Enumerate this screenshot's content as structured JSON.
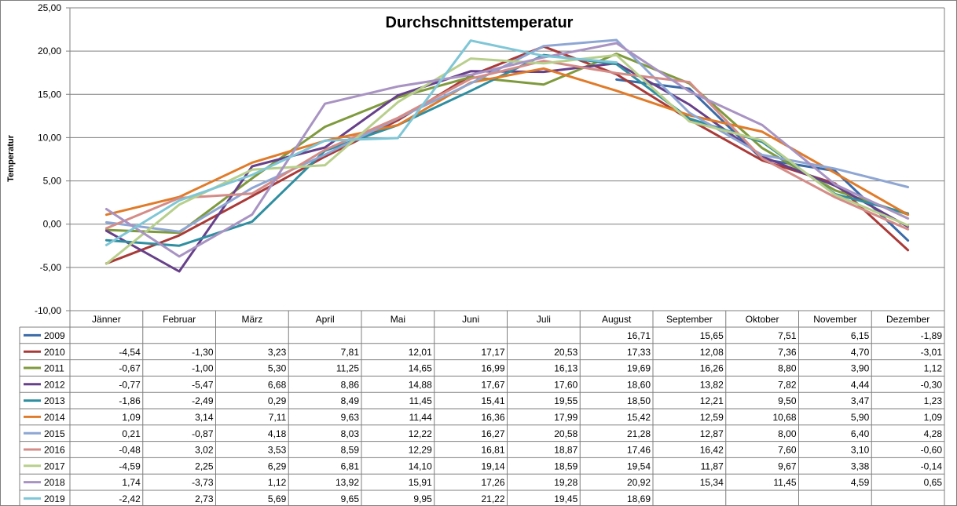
{
  "chart_data": {
    "type": "line",
    "title": "Durchschnittstemperatur",
    "ylabel": "Temperatur",
    "xlabel": "",
    "ylim": [
      -10,
      25
    ],
    "y_ticks": [
      "-10,00",
      "-5,00",
      "0,00",
      "5,00",
      "10,00",
      "15,00",
      "20,00",
      "25,00"
    ],
    "y_tick_values": [
      -10,
      -5,
      0,
      5,
      10,
      15,
      20,
      25
    ],
    "categories": [
      "Jänner",
      "Februar",
      "März",
      "April",
      "Mai",
      "Juni",
      "Juli",
      "August",
      "September",
      "Oktober",
      "November",
      "Dezember"
    ],
    "grid": true,
    "legend": "data-table-left",
    "series": [
      {
        "name": "2009",
        "color": "#3a6aa8",
        "values": [
          null,
          null,
          null,
          null,
          null,
          null,
          null,
          16.71,
          15.65,
          7.51,
          6.15,
          -1.89
        ],
        "labels": [
          "",
          "",
          "",
          "",
          "",
          "",
          "",
          "16,71",
          "15,65",
          "7,51",
          "6,15",
          "-1,89"
        ]
      },
      {
        "name": "2010",
        "color": "#a93a38",
        "values": [
          -4.54,
          -1.3,
          3.23,
          7.81,
          12.01,
          17.17,
          20.53,
          17.33,
          12.08,
          7.36,
          4.7,
          -3.01
        ],
        "labels": [
          "-4,54",
          "-1,30",
          "3,23",
          "7,81",
          "12,01",
          "17,17",
          "20,53",
          "17,33",
          "12,08",
          "7,36",
          "4,70",
          "-3,01"
        ]
      },
      {
        "name": "2011",
        "color": "#7f9a3c",
        "values": [
          -0.67,
          -1.0,
          5.3,
          11.25,
          14.65,
          16.99,
          16.13,
          19.69,
          16.26,
          8.8,
          3.9,
          1.12
        ],
        "labels": [
          "-0,67",
          "-1,00",
          "5,30",
          "11,25",
          "14,65",
          "16,99",
          "16,13",
          "19,69",
          "16,26",
          "8,80",
          "3,90",
          "1,12"
        ]
      },
      {
        "name": "2012",
        "color": "#67408a",
        "values": [
          -0.77,
          -5.47,
          6.68,
          8.86,
          14.88,
          17.67,
          17.6,
          18.6,
          13.82,
          7.82,
          4.44,
          -0.3
        ],
        "labels": [
          "-0,77",
          "-5,47",
          "6,68",
          "8,86",
          "14,88",
          "17,67",
          "17,60",
          "18,60",
          "13,82",
          "7,82",
          "4,44",
          "-0,30"
        ]
      },
      {
        "name": "2013",
        "color": "#2f8ea0",
        "values": [
          -1.86,
          -2.49,
          0.29,
          8.49,
          11.45,
          15.41,
          19.55,
          18.5,
          12.21,
          9.5,
          3.47,
          1.23
        ],
        "labels": [
          "-1,86",
          "-2,49",
          "0,29",
          "8,49",
          "11,45",
          "15,41",
          "19,55",
          "18,50",
          "12,21",
          "9,50",
          "3,47",
          "1,23"
        ]
      },
      {
        "name": "2014",
        "color": "#e07b2a",
        "values": [
          1.09,
          3.14,
          7.11,
          9.63,
          11.44,
          16.36,
          17.99,
          15.42,
          12.59,
          10.68,
          5.9,
          1.09
        ],
        "labels": [
          "1,09",
          "3,14",
          "7,11",
          "9,63",
          "11,44",
          "16,36",
          "17,99",
          "15,42",
          "12,59",
          "10,68",
          "5,90",
          "1,09"
        ]
      },
      {
        "name": "2015",
        "color": "#8ea6d3",
        "values": [
          0.21,
          -0.87,
          4.18,
          8.03,
          12.22,
          16.27,
          20.58,
          21.28,
          12.87,
          8.0,
          6.4,
          4.28
        ],
        "labels": [
          "0,21",
          "-0,87",
          "4,18",
          "8,03",
          "12,22",
          "16,27",
          "20,58",
          "21,28",
          "12,87",
          "8,00",
          "6,40",
          "4,28"
        ]
      },
      {
        "name": "2016",
        "color": "#d48c88",
        "values": [
          -0.48,
          3.02,
          3.53,
          8.59,
          12.29,
          16.81,
          18.87,
          17.46,
          16.42,
          7.6,
          3.1,
          -0.6
        ],
        "labels": [
          "-0,48",
          "3,02",
          "3,53",
          "8,59",
          "12,29",
          "16,81",
          "18,87",
          "17,46",
          "16,42",
          "7,60",
          "3,10",
          "-0,60"
        ]
      },
      {
        "name": "2017",
        "color": "#b8cf8c",
        "values": [
          -4.59,
          2.25,
          6.29,
          6.81,
          14.1,
          19.14,
          18.59,
          19.54,
          11.87,
          9.67,
          3.38,
          -0.14
        ],
        "labels": [
          "-4,59",
          "2,25",
          "6,29",
          "6,81",
          "14,10",
          "19,14",
          "18,59",
          "19,54",
          "11,87",
          "9,67",
          "3,38",
          "-0,14"
        ]
      },
      {
        "name": "2018",
        "color": "#a893c2",
        "values": [
          1.74,
          -3.73,
          1.12,
          13.92,
          15.91,
          17.26,
          19.28,
          20.92,
          15.34,
          11.45,
          4.59,
          0.65
        ],
        "labels": [
          "1,74",
          "-3,73",
          "1,12",
          "13,92",
          "15,91",
          "17,26",
          "19,28",
          "20,92",
          "15,34",
          "11,45",
          "4,59",
          "0,65"
        ]
      },
      {
        "name": "2019",
        "color": "#7fc6d6",
        "values": [
          -2.42,
          2.73,
          5.69,
          9.65,
          9.95,
          21.22,
          19.45,
          18.69,
          null,
          null,
          null,
          null
        ],
        "labels": [
          "-2,42",
          "2,73",
          "5,69",
          "9,65",
          "9,95",
          "21,22",
          "19,45",
          "18,69",
          "",
          "",
          "",
          ""
        ]
      }
    ]
  }
}
